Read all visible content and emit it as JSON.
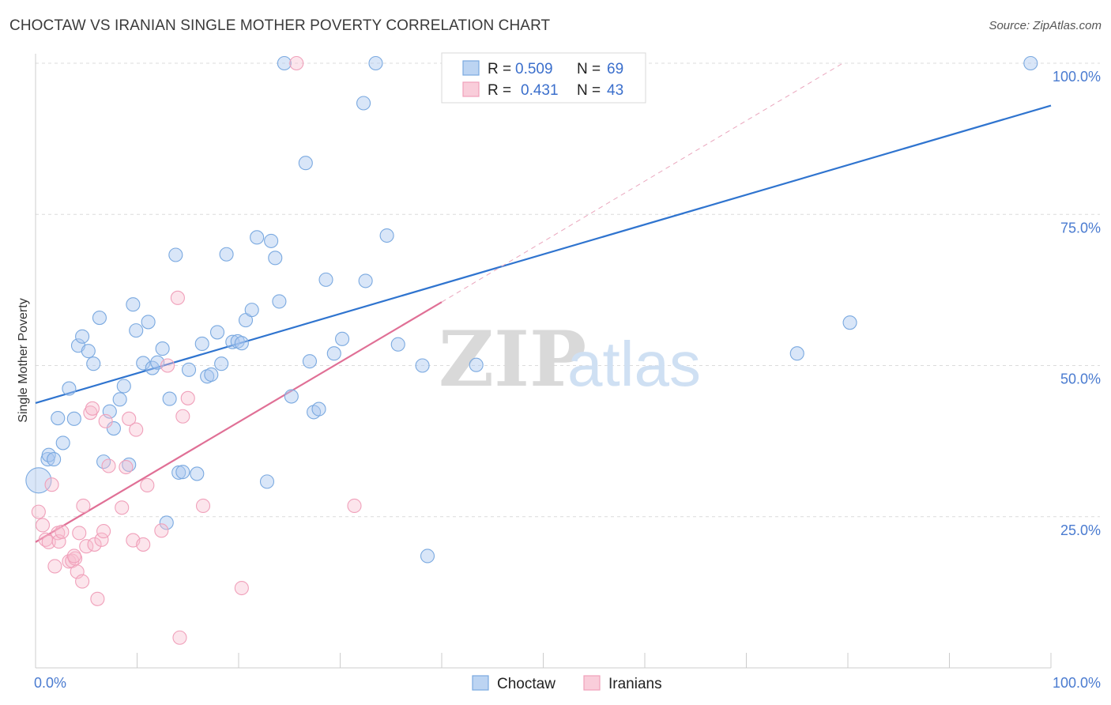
{
  "title": "CHOCTAW VS IRANIAN SINGLE MOTHER POVERTY CORRELATION CHART",
  "source": "Source: ZipAtlas.com",
  "watermark": {
    "zip": "ZIP",
    "atlas": "atlas"
  },
  "colors": {
    "choctaw": "#7aa9e0",
    "choctaw_line": "#2f74cf",
    "iranians": "#f0a0ba",
    "iranians_line": "#e07096",
    "axis_label": "#4a7bd0"
  },
  "legend": {
    "rows": [
      {
        "r_label": "R =",
        "r_value": "0.509",
        "n_label": "N =",
        "n_value": "69"
      },
      {
        "r_label": "R =",
        "r_value": "0.431",
        "n_label": "N =",
        "n_value": "43"
      }
    ]
  },
  "bottom_legend": [
    "Choctaw",
    "Iranians"
  ],
  "chart_data": {
    "type": "scatter",
    "ylabel": "Single Mother Poverty",
    "xlim": [
      0,
      100
    ],
    "ylim": [
      0,
      100
    ],
    "x_tick_labels": [
      "0.0%",
      "100.0%"
    ],
    "y_tick_labels": [
      "25.0%",
      "50.0%",
      "75.0%",
      "100.0%"
    ],
    "y_ticks": [
      25,
      50,
      75,
      100
    ],
    "grid": true,
    "legend_position": "top-center",
    "series": [
      {
        "name": "Choctaw",
        "points": [
          [
            0.3,
            31
          ],
          [
            1.2,
            34.5
          ],
          [
            1.3,
            35.2
          ],
          [
            1.8,
            34.5
          ],
          [
            2.2,
            41.3
          ],
          [
            2.7,
            37.2
          ],
          [
            3.3,
            46.2
          ],
          [
            3.8,
            41.2
          ],
          [
            4.2,
            53.3
          ],
          [
            4.6,
            54.8
          ],
          [
            5.2,
            52.4
          ],
          [
            5.7,
            50.3
          ],
          [
            6.3,
            57.9
          ],
          [
            6.7,
            34.1
          ],
          [
            7.3,
            42.4
          ],
          [
            7.7,
            39.6
          ],
          [
            8.3,
            44.4
          ],
          [
            8.7,
            46.6
          ],
          [
            9.2,
            33.6
          ],
          [
            9.6,
            60.1
          ],
          [
            9.9,
            55.8
          ],
          [
            10.6,
            50.4
          ],
          [
            11.1,
            57.2
          ],
          [
            11.5,
            49.6
          ],
          [
            12.0,
            50.5
          ],
          [
            12.5,
            52.8
          ],
          [
            13.2,
            44.5
          ],
          [
            13.8,
            68.3
          ],
          [
            14.1,
            32.3
          ],
          [
            14.5,
            32.4
          ],
          [
            15.1,
            49.3
          ],
          [
            15.9,
            32.1
          ],
          [
            16.4,
            53.6
          ],
          [
            16.9,
            48.2
          ],
          [
            17.3,
            48.5
          ],
          [
            17.9,
            55.5
          ],
          [
            18.3,
            50.3
          ],
          [
            18.8,
            68.4
          ],
          [
            19.4,
            53.9
          ],
          [
            19.9,
            54.0
          ],
          [
            20.3,
            53.7
          ],
          [
            20.7,
            57.5
          ],
          [
            21.3,
            59.2
          ],
          [
            21.8,
            71.2
          ],
          [
            22.8,
            30.8
          ],
          [
            23.2,
            70.6
          ],
          [
            23.6,
            67.8
          ],
          [
            24.0,
            60.6
          ],
          [
            24.5,
            100
          ],
          [
            25.2,
            44.9
          ],
          [
            26.6,
            83.5
          ],
          [
            27.0,
            50.7
          ],
          [
            27.4,
            42.3
          ],
          [
            27.9,
            42.8
          ],
          [
            28.6,
            64.2
          ],
          [
            29.4,
            52.0
          ],
          [
            30.2,
            54.4
          ],
          [
            32.3,
            93.4
          ],
          [
            32.5,
            64.0
          ],
          [
            33.5,
            100
          ],
          [
            34.6,
            71.5
          ],
          [
            35.7,
            53.5
          ],
          [
            38.1,
            50.0
          ],
          [
            38.6,
            18.5
          ],
          [
            43.4,
            50.1
          ],
          [
            45.0,
            100
          ],
          [
            75.0,
            52.0
          ],
          [
            80.2,
            57.1
          ],
          [
            98.0,
            100
          ],
          [
            12.9,
            24.0
          ]
        ]
      },
      {
        "name": "Iranians",
        "points": [
          [
            0.3,
            25.8
          ],
          [
            0.7,
            23.6
          ],
          [
            1.0,
            21.2
          ],
          [
            1.3,
            20.8
          ],
          [
            1.6,
            30.3
          ],
          [
            1.9,
            16.8
          ],
          [
            2.2,
            22.3
          ],
          [
            2.3,
            20.9
          ],
          [
            2.6,
            22.5
          ],
          [
            3.3,
            17.6
          ],
          [
            3.6,
            17.7
          ],
          [
            3.9,
            18.1
          ],
          [
            4.1,
            15.9
          ],
          [
            4.3,
            22.3
          ],
          [
            4.6,
            14.3
          ],
          [
            4.7,
            26.8
          ],
          [
            5.0,
            20.1
          ],
          [
            5.4,
            42.2
          ],
          [
            5.6,
            42.9
          ],
          [
            5.8,
            20.4
          ],
          [
            6.1,
            11.4
          ],
          [
            6.5,
            21.2
          ],
          [
            6.7,
            22.6
          ],
          [
            6.9,
            40.8
          ],
          [
            7.2,
            33.4
          ],
          [
            8.5,
            26.5
          ],
          [
            8.9,
            33.2
          ],
          [
            9.2,
            41.2
          ],
          [
            9.6,
            21.1
          ],
          [
            9.9,
            39.4
          ],
          [
            10.6,
            20.4
          ],
          [
            11.0,
            30.2
          ],
          [
            12.4,
            22.7
          ],
          [
            13.0,
            50.0
          ],
          [
            14.0,
            61.2
          ],
          [
            14.2,
            5.0
          ],
          [
            14.5,
            41.6
          ],
          [
            15.0,
            44.6
          ],
          [
            16.5,
            26.8
          ],
          [
            20.3,
            13.2
          ],
          [
            25.7,
            100
          ],
          [
            31.4,
            26.8
          ],
          [
            3.8,
            18.5
          ]
        ]
      }
    ],
    "trendlines": [
      {
        "series": "Choctaw",
        "x": [
          0,
          100
        ],
        "y": [
          43.8,
          93.0
        ]
      },
      {
        "series": "Iranians",
        "x": [
          0,
          40
        ],
        "y": [
          20.8,
          60.5
        ],
        "extension_x": [
          40,
          79.5
        ],
        "extension_y": [
          60.5,
          100
        ]
      }
    ]
  }
}
